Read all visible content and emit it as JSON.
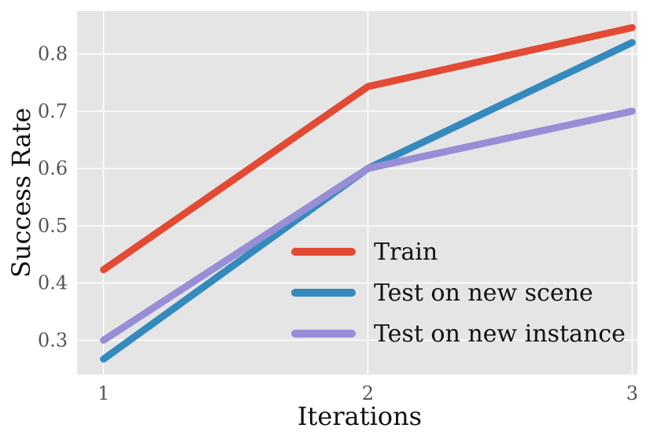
{
  "chart_data": {
    "type": "line",
    "title": "",
    "xlabel": "Iterations",
    "ylabel": "Success Rate",
    "x": [
      1,
      2,
      3
    ],
    "xticks": [
      "1",
      "2",
      "3"
    ],
    "yticks": [
      "0.3",
      "0.4",
      "0.5",
      "0.6",
      "0.7",
      "0.8"
    ],
    "xlim": [
      0.9,
      3.02
    ],
    "ylim": [
      0.24,
      0.875
    ],
    "grid": true,
    "legend_position": "lower-right",
    "series": [
      {
        "name": "Train",
        "values": [
          0.423,
          0.743,
          0.846
        ],
        "color": "#E24A33"
      },
      {
        "name": "Test on new scene",
        "values": [
          0.267,
          0.6,
          0.82
        ],
        "color": "#348ABD"
      },
      {
        "name": "Test on new instance",
        "values": [
          0.3,
          0.6,
          0.7
        ],
        "color": "#988ED5"
      }
    ],
    "background_color": "#E5E5E5",
    "grid_color": "#FFFFFF"
  }
}
